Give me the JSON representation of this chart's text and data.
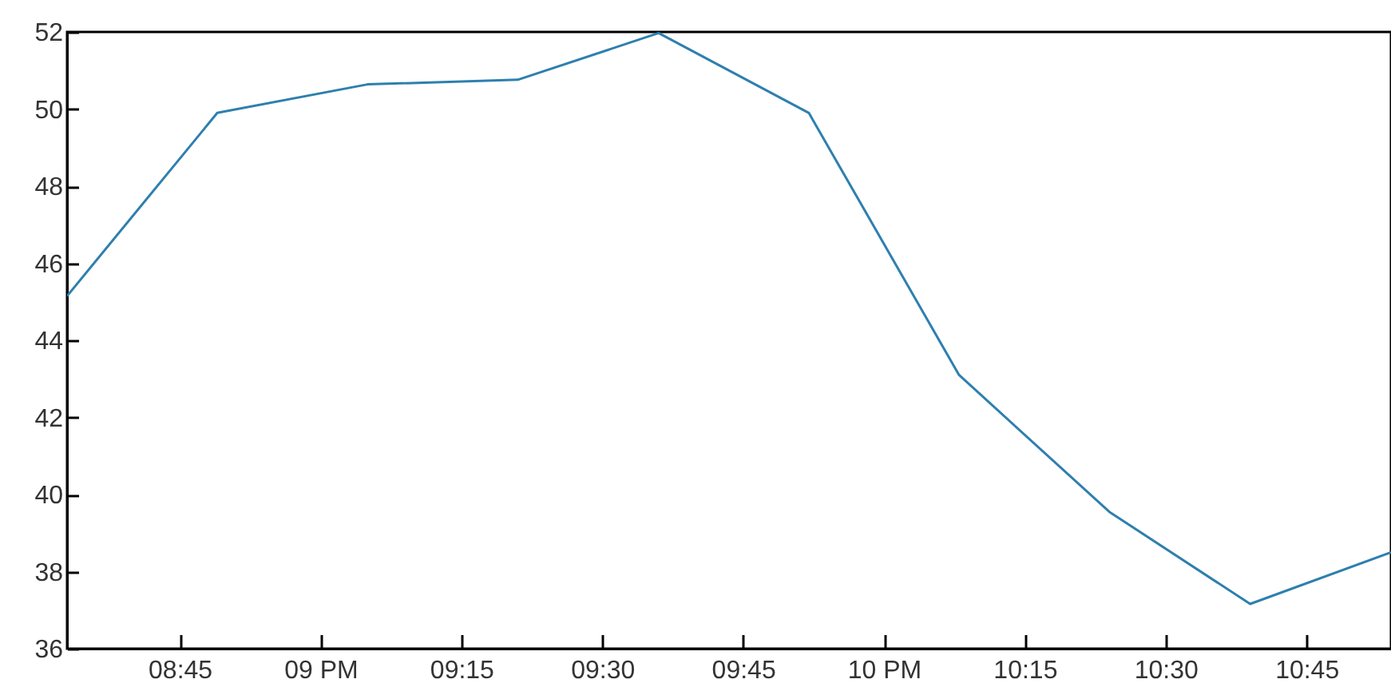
{
  "chart_data": {
    "type": "line",
    "x": [
      "--01-01T20:33",
      "--01-01T20:49",
      "--01-01T21:05",
      "--01-01T21:21",
      "--01-01T21:36",
      "--01-01T21:52",
      "--01-01T22:08",
      "--01-01T22:24",
      "--01-01T22:39",
      "--01-01T22:54"
    ],
    "series": [
      {
        "color": "#2e7fae",
        "values": [
          45.15,
          49.9,
          50.64,
          50.76,
          51.97,
          49.9,
          43.1,
          39.55,
          37.16,
          38.5
        ]
      }
    ],
    "xlim": [
      "--01-01T20:33",
      "--01-01T22:54"
    ],
    "xticks": [
      {
        "value": "--01-01T20:45",
        "label": "08:45"
      },
      {
        "value": "--01-01T21:00",
        "label": "09 PM"
      },
      {
        "value": "--01-01T21:15",
        "label": "09:15"
      },
      {
        "value": "--01-01T21:30",
        "label": "09:30"
      },
      {
        "value": "--01-01T21:45",
        "label": "09:45"
      },
      {
        "value": "--01-01T22:00",
        "label": "10 PM"
      },
      {
        "value": "--01-01T22:15",
        "label": "10:15"
      },
      {
        "value": "--01-01T22:30",
        "label": "10:30"
      },
      {
        "value": "--01-01T22:45",
        "label": "10:45"
      }
    ],
    "ylim": [
      36,
      52
    ],
    "yticks": [
      36,
      38,
      40,
      42,
      44,
      46,
      48,
      50,
      52
    ],
    "grid": false,
    "marker": "none",
    "line_style": "solid"
  }
}
